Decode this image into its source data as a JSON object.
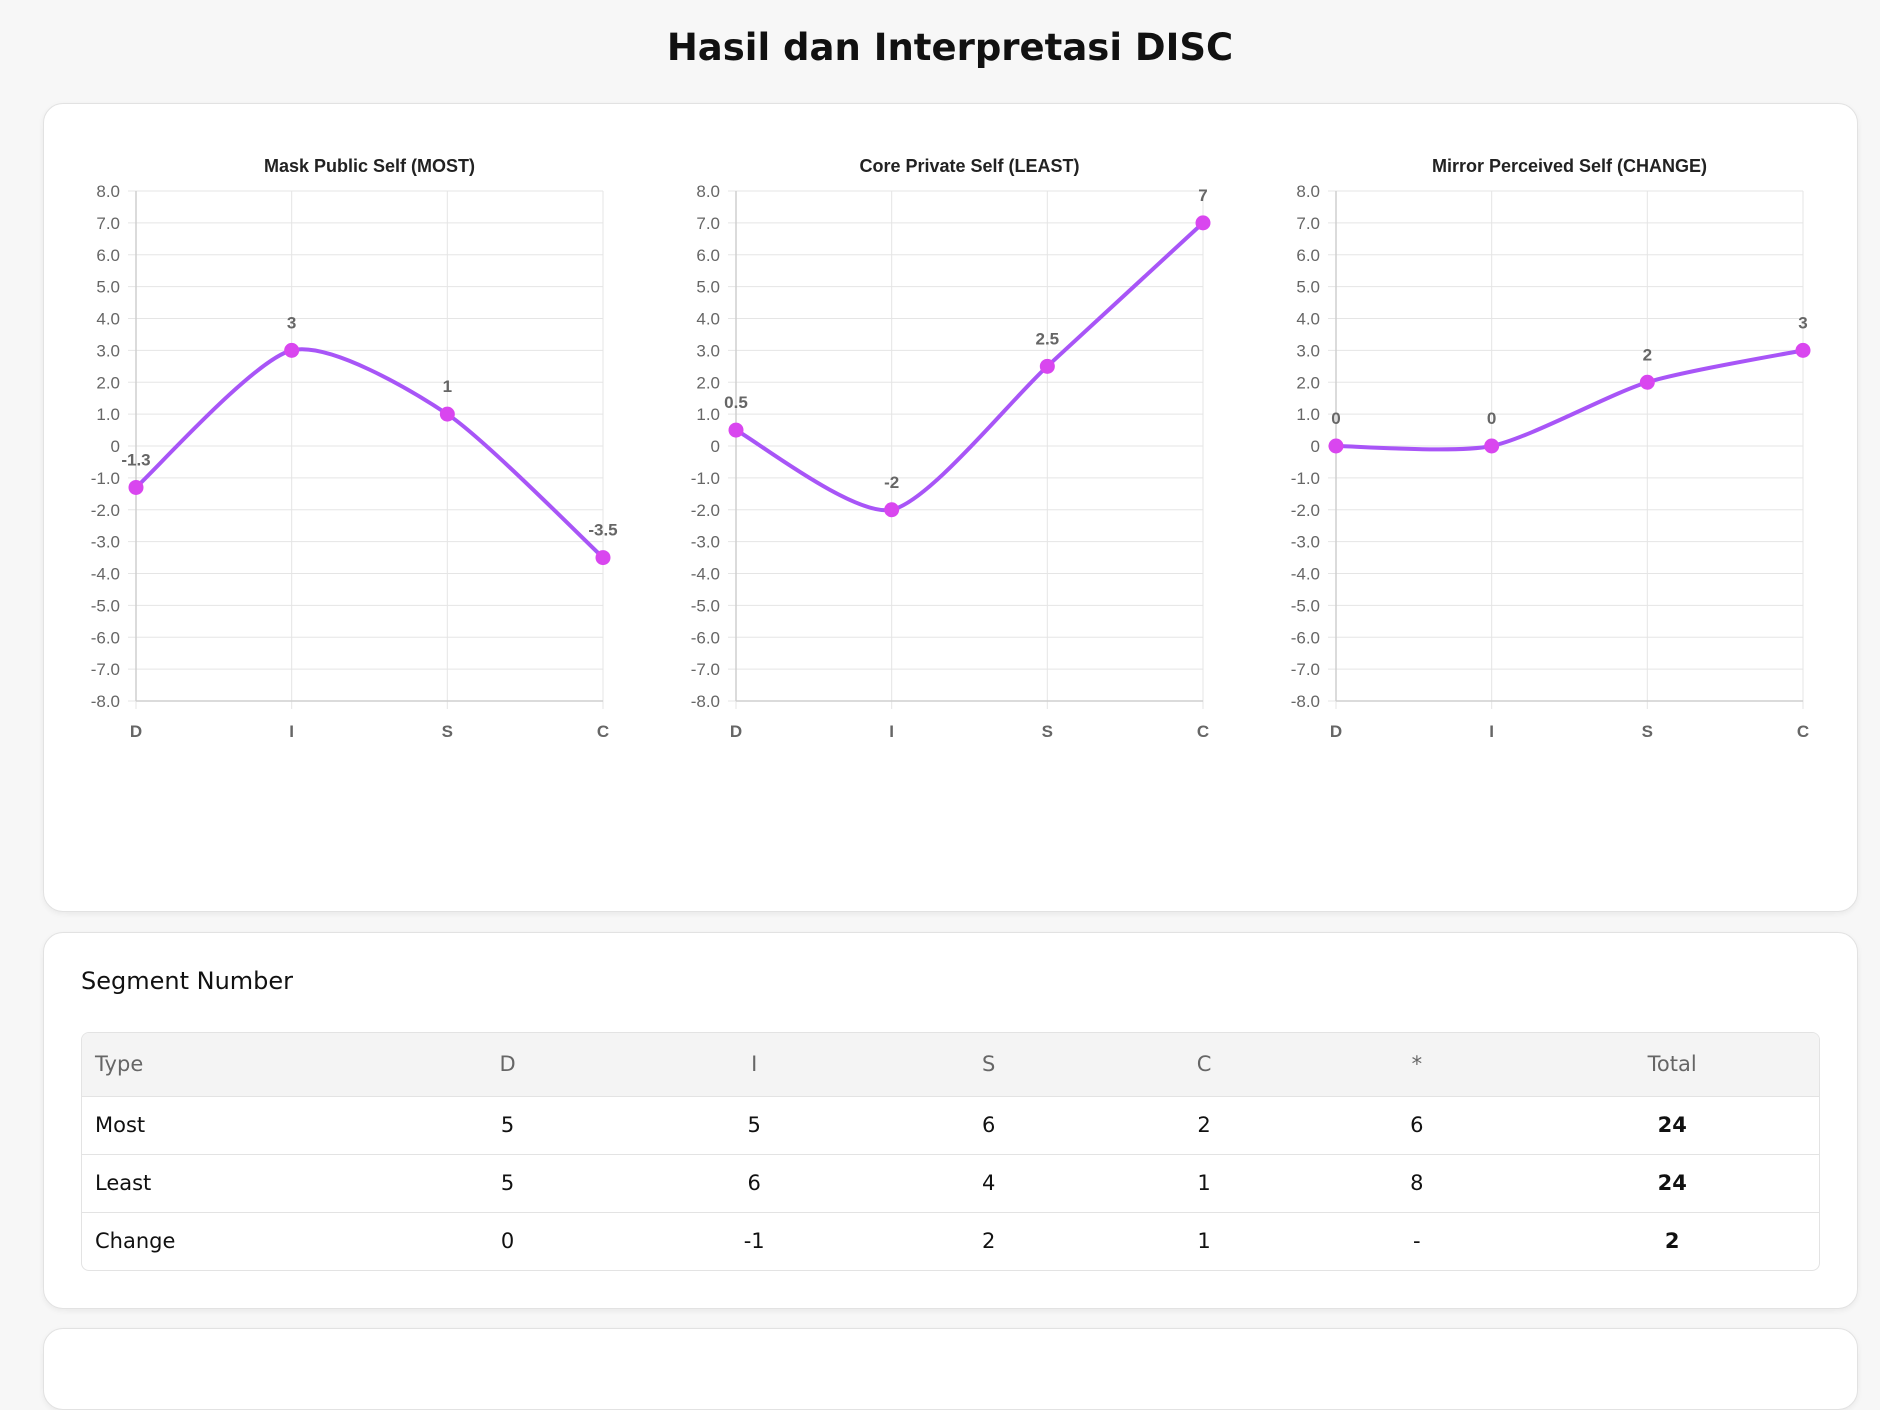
{
  "page": {
    "title": "Hasil dan Interpretasi DISC"
  },
  "colors": {
    "line": "#a855f7",
    "point": "#d946ef",
    "grid": "#e5e5e5"
  },
  "chart_data": [
    {
      "type": "line",
      "title": "Mask Public Self (MOST)",
      "categories": [
        "D",
        "I",
        "S",
        "C"
      ],
      "values": [
        -1.3,
        3,
        1,
        -3.5
      ],
      "ylim": [
        -8,
        8
      ],
      "yticks": [
        "8.0",
        "7.0",
        "6.0",
        "5.0",
        "4.0",
        "3.0",
        "2.0",
        "1.0",
        "0",
        "-1.0",
        "-2.0",
        "-3.0",
        "-4.0",
        "-5.0",
        "-6.0",
        "-7.0",
        "-8.0"
      ],
      "data_labels": [
        "-1.3",
        "3",
        "1",
        "-3.5"
      ],
      "grid": true
    },
    {
      "type": "line",
      "title": "Core Private Self (LEAST)",
      "categories": [
        "D",
        "I",
        "S",
        "C"
      ],
      "values": [
        0.5,
        -2,
        2.5,
        7
      ],
      "ylim": [
        -8,
        8
      ],
      "yticks": [
        "8.0",
        "7.0",
        "6.0",
        "5.0",
        "4.0",
        "3.0",
        "2.0",
        "1.0",
        "0",
        "-1.0",
        "-2.0",
        "-3.0",
        "-4.0",
        "-5.0",
        "-6.0",
        "-7.0",
        "-8.0"
      ],
      "data_labels": [
        "0.5",
        "-2",
        "2.5",
        "7"
      ],
      "grid": true
    },
    {
      "type": "line",
      "title": "Mirror Perceived Self (CHANGE)",
      "categories": [
        "D",
        "I",
        "S",
        "C"
      ],
      "values": [
        0,
        0,
        2,
        3
      ],
      "ylim": [
        -8,
        8
      ],
      "yticks": [
        "8.0",
        "7.0",
        "6.0",
        "5.0",
        "4.0",
        "3.0",
        "2.0",
        "1.0",
        "0",
        "-1.0",
        "-2.0",
        "-3.0",
        "-4.0",
        "-5.0",
        "-6.0",
        "-7.0",
        "-8.0"
      ],
      "data_labels": [
        "0",
        "0",
        "2",
        "3"
      ],
      "grid": true
    }
  ],
  "segment": {
    "title": "Segment Number",
    "headers": [
      "Type",
      "D",
      "I",
      "S",
      "C",
      "*",
      "Total"
    ],
    "rows": [
      [
        "Most",
        "5",
        "5",
        "6",
        "2",
        "6",
        "24"
      ],
      [
        "Least",
        "5",
        "6",
        "4",
        "1",
        "8",
        "24"
      ],
      [
        "Change",
        "0",
        "-1",
        "2",
        "1",
        "-",
        "2"
      ]
    ]
  }
}
